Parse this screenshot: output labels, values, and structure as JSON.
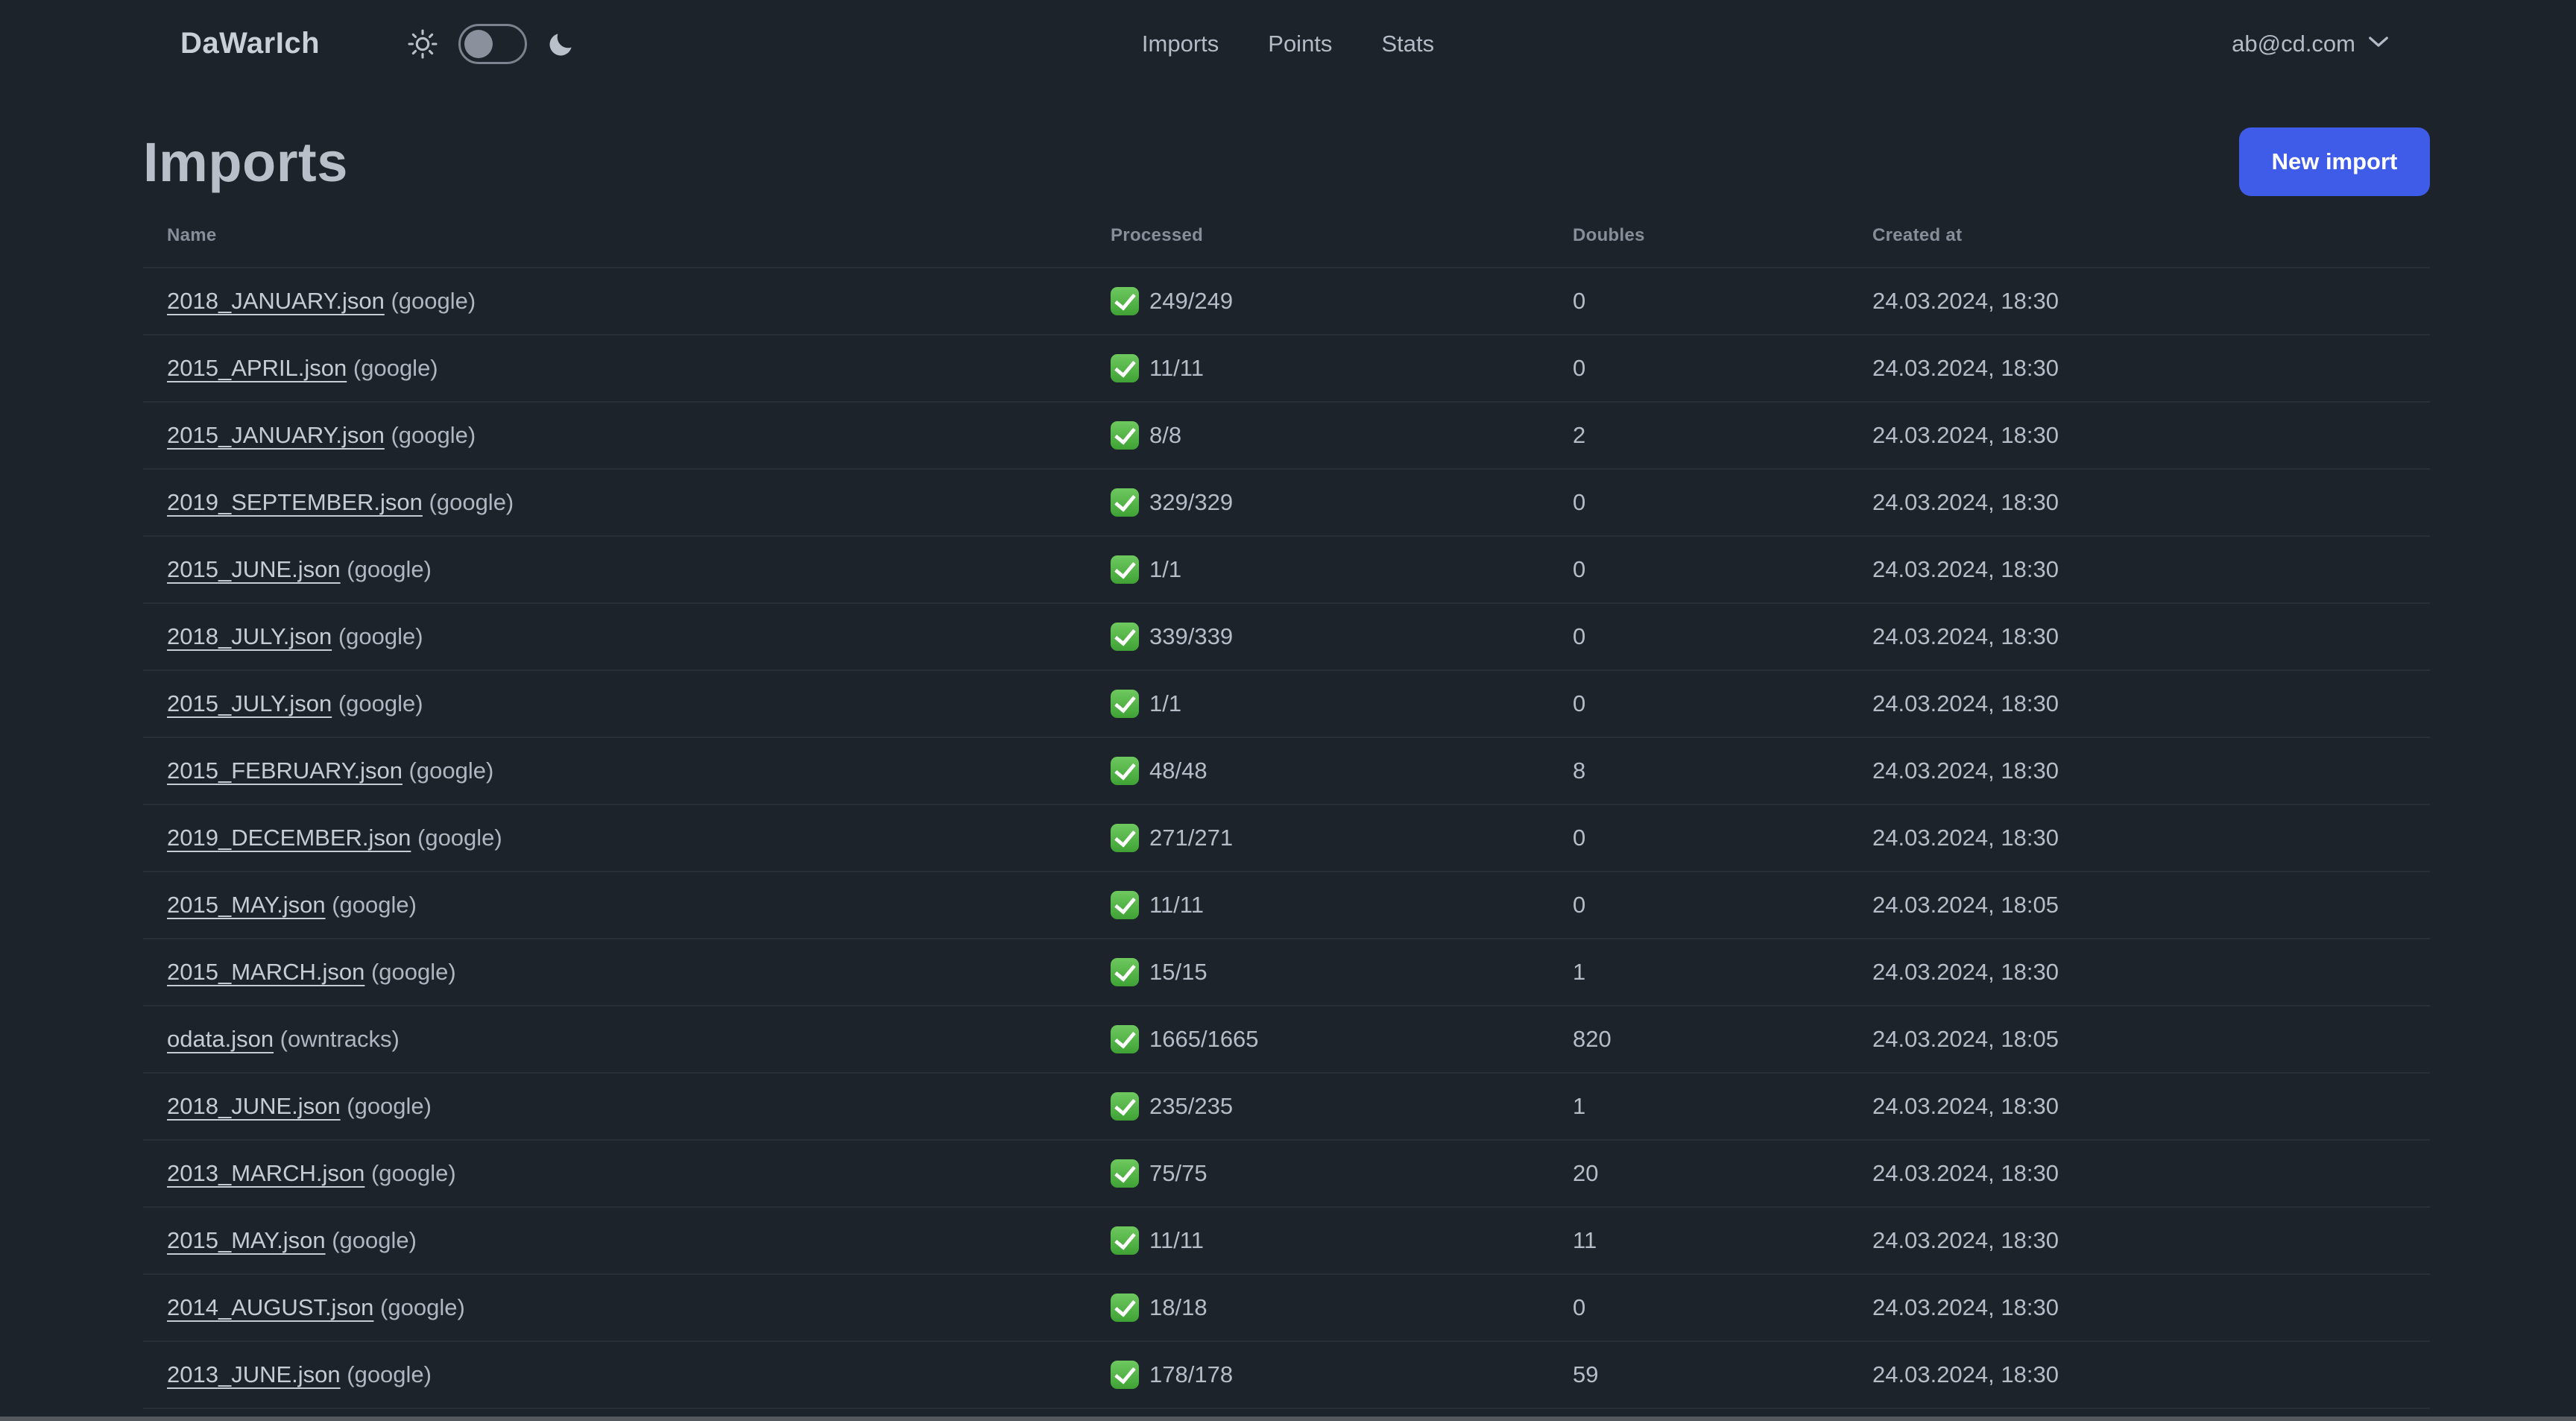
{
  "app": {
    "brand": "DaWarIch"
  },
  "nav": {
    "items": [
      {
        "label": "Imports"
      },
      {
        "label": "Points"
      },
      {
        "label": "Stats"
      }
    ],
    "account_email": "ab@cd.com"
  },
  "page": {
    "title": "Imports",
    "new_import_label": "New import"
  },
  "table": {
    "headers": [
      "Name",
      "Processed",
      "Doubles",
      "Created at"
    ],
    "rows": [
      {
        "name": "2018_JANUARY.json",
        "source": "(google)",
        "processed": "249/249",
        "doubles": "0",
        "created_at": "24.03.2024, 18:30"
      },
      {
        "name": "2015_APRIL.json",
        "source": "(google)",
        "processed": "11/11",
        "doubles": "0",
        "created_at": "24.03.2024, 18:30"
      },
      {
        "name": "2015_JANUARY.json",
        "source": "(google)",
        "processed": "8/8",
        "doubles": "2",
        "created_at": "24.03.2024, 18:30"
      },
      {
        "name": "2019_SEPTEMBER.json",
        "source": "(google)",
        "processed": "329/329",
        "doubles": "0",
        "created_at": "24.03.2024, 18:30"
      },
      {
        "name": "2015_JUNE.json",
        "source": "(google)",
        "processed": "1/1",
        "doubles": "0",
        "created_at": "24.03.2024, 18:30"
      },
      {
        "name": "2018_JULY.json",
        "source": "(google)",
        "processed": "339/339",
        "doubles": "0",
        "created_at": "24.03.2024, 18:30"
      },
      {
        "name": "2015_JULY.json",
        "source": "(google)",
        "processed": "1/1",
        "doubles": "0",
        "created_at": "24.03.2024, 18:30"
      },
      {
        "name": "2015_FEBRUARY.json",
        "source": "(google)",
        "processed": "48/48",
        "doubles": "8",
        "created_at": "24.03.2024, 18:30"
      },
      {
        "name": "2019_DECEMBER.json",
        "source": "(google)",
        "processed": "271/271",
        "doubles": "0",
        "created_at": "24.03.2024, 18:30"
      },
      {
        "name": "2015_MAY.json",
        "source": "(google)",
        "processed": "11/11",
        "doubles": "0",
        "created_at": "24.03.2024, 18:05"
      },
      {
        "name": "2015_MARCH.json",
        "source": "(google)",
        "processed": "15/15",
        "doubles": "1",
        "created_at": "24.03.2024, 18:30"
      },
      {
        "name": "odata.json",
        "source": "(owntracks)",
        "processed": "1665/1665",
        "doubles": "820",
        "created_at": "24.03.2024, 18:05"
      },
      {
        "name": "2018_JUNE.json",
        "source": "(google)",
        "processed": "235/235",
        "doubles": "1",
        "created_at": "24.03.2024, 18:30"
      },
      {
        "name": "2013_MARCH.json",
        "source": "(google)",
        "processed": "75/75",
        "doubles": "20",
        "created_at": "24.03.2024, 18:30"
      },
      {
        "name": "2015_MAY.json",
        "source": "(google)",
        "processed": "11/11",
        "doubles": "11",
        "created_at": "24.03.2024, 18:30"
      },
      {
        "name": "2014_AUGUST.json",
        "source": "(google)",
        "processed": "18/18",
        "doubles": "0",
        "created_at": "24.03.2024, 18:30"
      },
      {
        "name": "2013_JUNE.json",
        "source": "(google)",
        "processed": "178/178",
        "doubles": "59",
        "created_at": "24.03.2024, 18:30"
      }
    ],
    "partial_row_visible": true
  },
  "colors": {
    "background": "#1d232a",
    "accent_button": "#3f5ce8",
    "check_green": "#3fa235",
    "text": "#b6bdc8",
    "muted_text": "#878e99"
  }
}
